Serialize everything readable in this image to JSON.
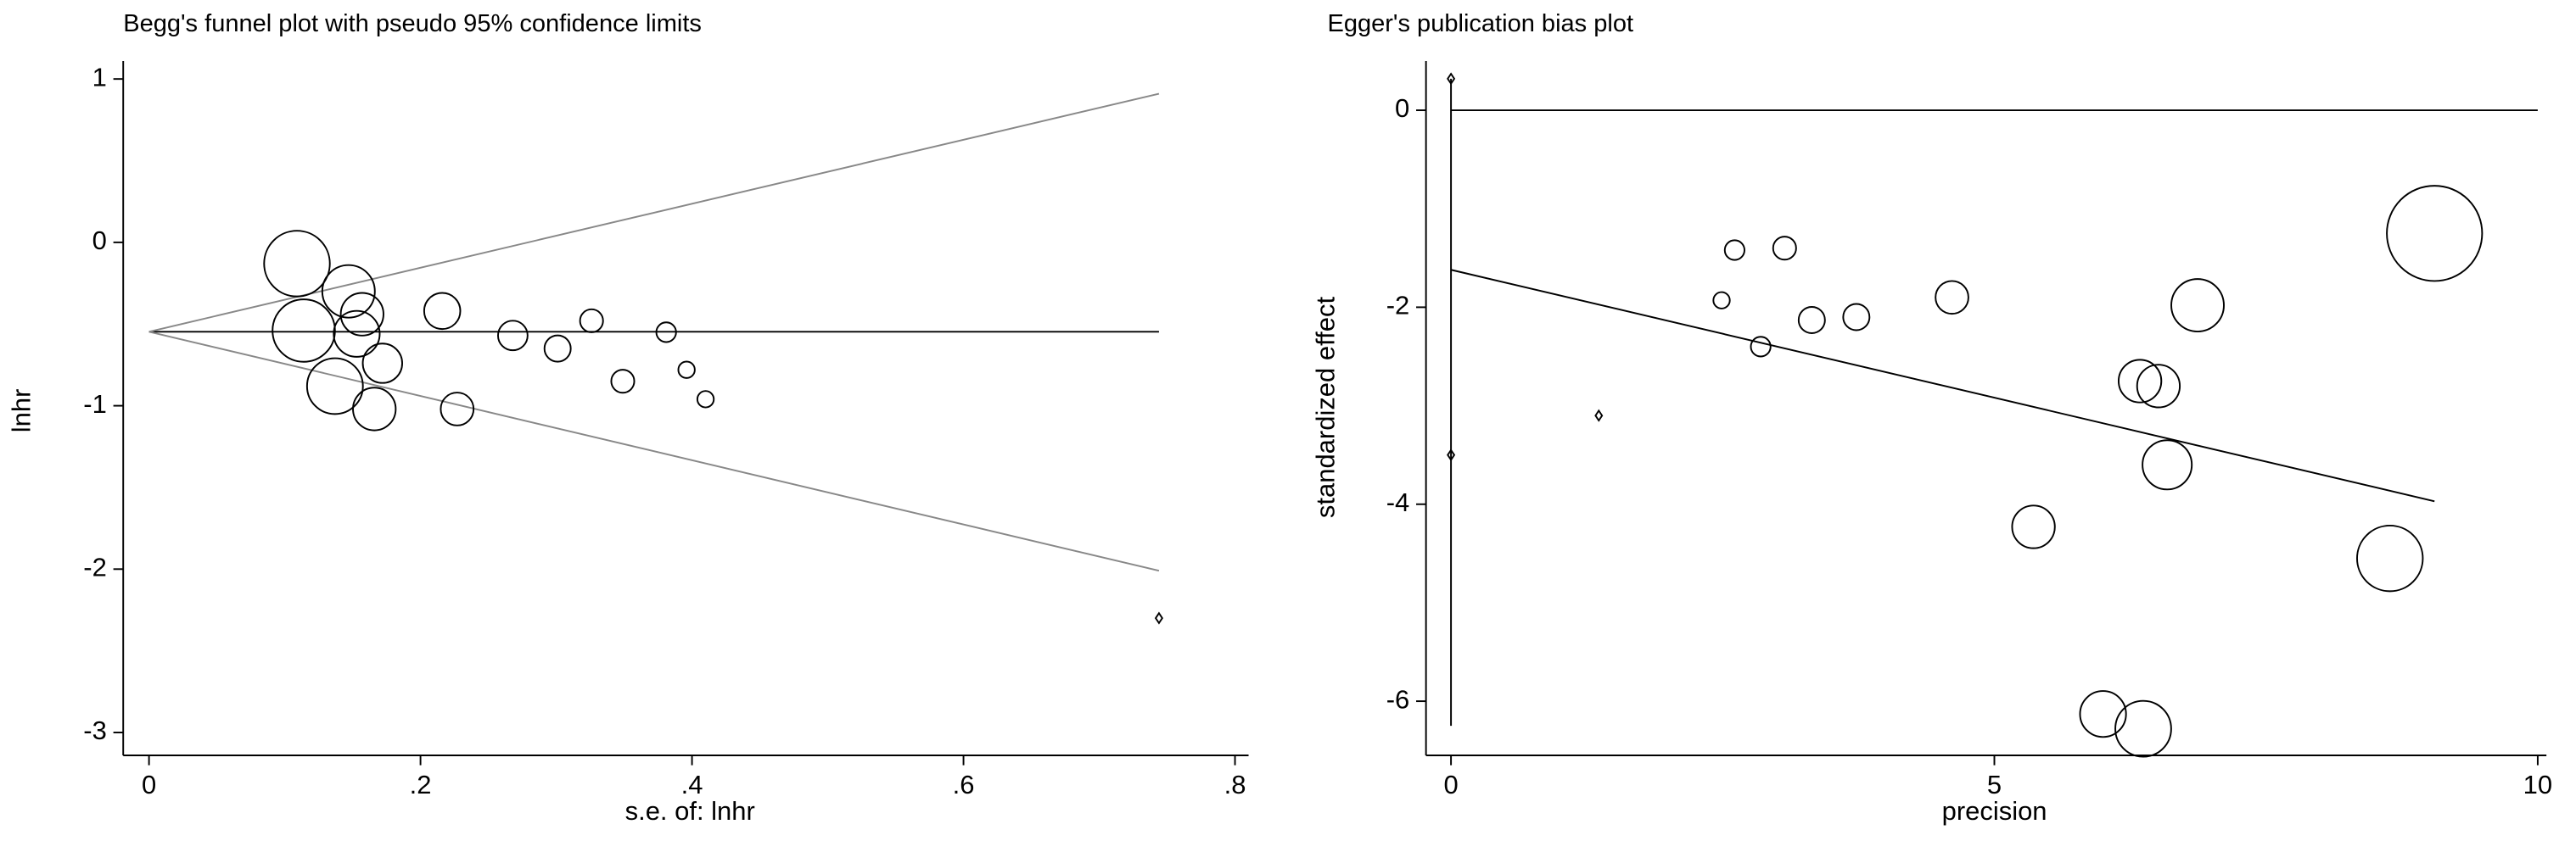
{
  "chart_data": [
    {
      "type": "scatter",
      "title": "Begg's funnel plot with pseudo 95% confidence limits",
      "x_label": "s.e. of: lnhr",
      "y_label": "lnhr",
      "xlim": [
        -0.019,
        0.81
      ],
      "ylim": [
        -3.14,
        1.11
      ],
      "xticks": [
        0,
        {
          "value": 0.2,
          "label": ".2"
        },
        {
          "value": 0.4,
          "label": ".4"
        },
        {
          "value": 0.6,
          "label": ".6"
        },
        {
          "value": 0.8,
          "label": ".8"
        }
      ],
      "yticks": [
        1,
        0,
        -1,
        -2,
        -3
      ],
      "color": "#000000",
      "x": [
        0.109,
        0.147,
        0.114,
        0.157,
        0.153,
        0.137,
        0.172,
        0.166,
        0.216,
        0.227,
        0.268,
        0.301,
        0.326,
        0.349,
        0.381,
        0.396,
        0.41,
        0.744
      ],
      "values": [
        -0.13,
        -0.3,
        -0.54,
        -0.44,
        -0.56,
        -0.88,
        -0.74,
        -1.02,
        -0.42,
        -1.02,
        -0.57,
        -0.65,
        -0.48,
        -0.85,
        -0.55,
        -0.78,
        -0.96,
        -2.3
      ],
      "sizes": [
        20,
        16,
        19,
        13,
        14,
        17,
        12,
        13,
        11,
        10,
        9,
        8,
        7,
        7,
        6,
        5,
        5,
        0
      ],
      "lines": [
        {
          "color": "#000000",
          "x": [
            0,
            0.744
          ],
          "y": [
            -0.547,
            -0.547
          ]
        },
        {
          "color": "#888888",
          "x": [
            0,
            0.744
          ],
          "y": [
            -0.547,
            0.91
          ]
        },
        {
          "color": "#888888",
          "x": [
            0,
            0.744
          ],
          "y": [
            -0.547,
            -2.01
          ]
        }
      ]
    },
    {
      "type": "scatter",
      "title": "Egger's publication bias plot",
      "x_label": "precision",
      "y_label": "standardized effect",
      "xlim": [
        -0.23,
        10.08
      ],
      "ylim": [
        -6.55,
        0.5
      ],
      "xticks": [
        0,
        5,
        10
      ],
      "yticks": [
        0,
        -2,
        -4,
        -6
      ],
      "color": "#000000",
      "x": [
        9.05,
        2.61,
        3.07,
        2.49,
        4.61,
        6.87,
        3.32,
        3.73,
        2.85,
        6.34,
        6.51,
        6.59,
        5.36,
        8.64,
        6.0,
        6.37,
        1.36,
        0,
        0
      ],
      "values": [
        -1.25,
        -1.42,
        -1.4,
        -1.93,
        -1.9,
        -1.98,
        -2.13,
        -2.1,
        -2.4,
        -2.75,
        -2.8,
        -3.6,
        -4.23,
        -4.55,
        -6.13,
        -6.28,
        -3.1,
        0.32,
        -3.5
      ],
      "sizes": [
        29,
        6,
        7,
        5,
        10,
        16,
        8,
        8,
        6,
        13,
        13,
        15,
        13,
        20,
        14,
        17,
        0,
        0,
        0
      ],
      "lines": [
        {
          "color": "#000000",
          "x": [
            0,
            10
          ],
          "y": [
            0,
            0
          ]
        },
        {
          "color": "#000000",
          "x": [
            0,
            0
          ],
          "y": [
            0.32,
            -6.25
          ]
        },
        {
          "color": "#000000",
          "x": [
            0,
            9.05
          ],
          "y": [
            -1.62,
            -3.97
          ]
        }
      ]
    }
  ]
}
